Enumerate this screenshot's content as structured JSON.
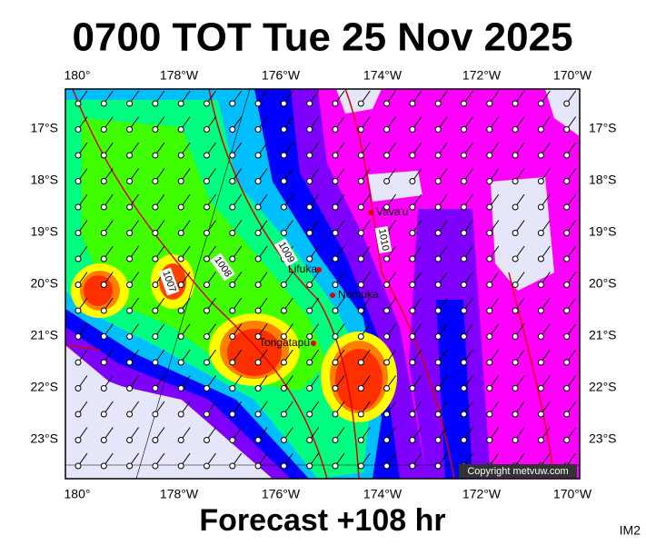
{
  "header": {
    "title": "0700 TOT Tue 25 Nov 2025"
  },
  "map": {
    "longitude_labels": [
      "180°",
      "178°W",
      "176°W",
      "174°W",
      "172°W",
      "170°W"
    ],
    "latitude_labels": [
      "17°S",
      "18°S",
      "19°S",
      "20°S",
      "21°S",
      "22°S",
      "23°S"
    ],
    "places": [
      "Vava'u",
      "Lifuka",
      "Nomuka",
      "Tongatapu"
    ],
    "isobar_labels": [
      "1007",
      "1008",
      "1009",
      "1010"
    ]
  },
  "footer": {
    "forecast": "Forecast +108 hr",
    "copyright": "Copyright metvuw.com",
    "image_id": "IM2"
  }
}
